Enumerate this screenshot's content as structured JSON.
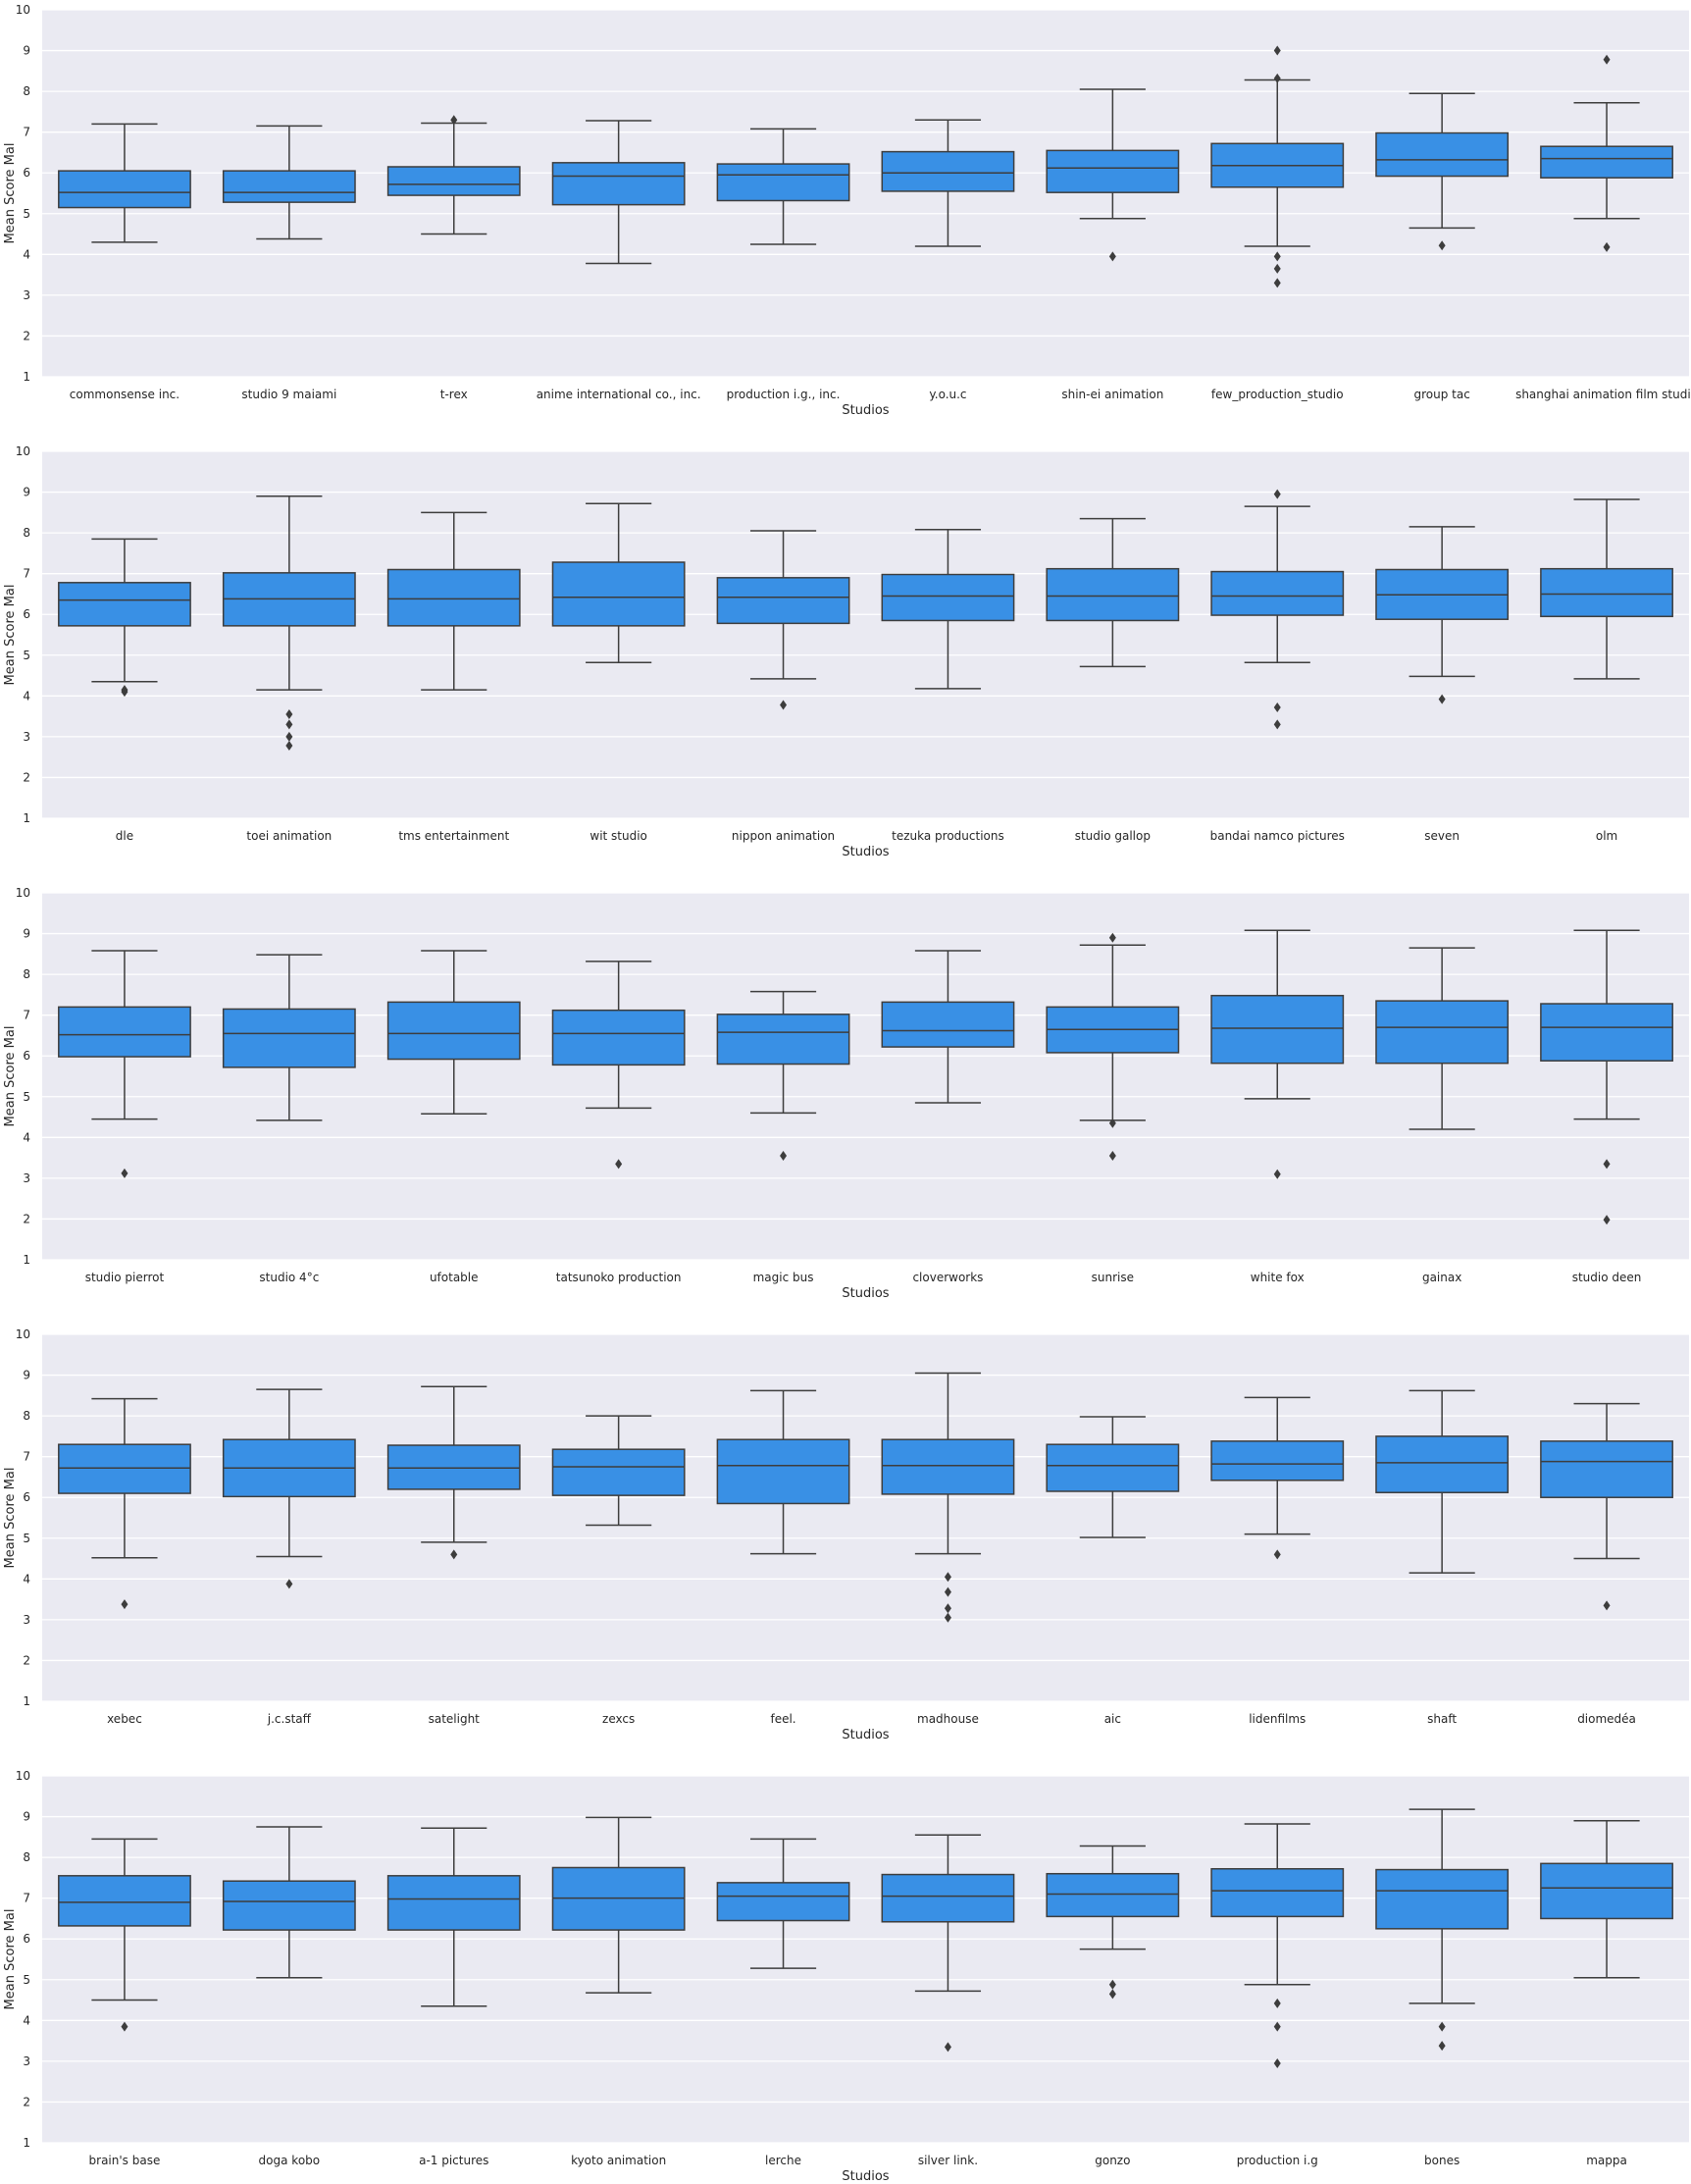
{
  "chart_data": [
    {
      "type": "boxplot",
      "xlabel": "Studios",
      "ylabel": "Mean Score Mal",
      "ylim": [
        1,
        10
      ],
      "yticks": [
        1,
        2,
        3,
        4,
        5,
        6,
        7,
        8,
        9,
        10
      ],
      "grid": true,
      "box_color": "#3990e5",
      "categories": [
        "commonsense inc.",
        "studio 9 maiami",
        "t-rex",
        "anime international co., inc.",
        "production i.g., inc.",
        "y.o.u.c",
        "shin-ei animation",
        "few_production_studio",
        "group tac",
        "shanghai animation film studio"
      ],
      "boxes": [
        {
          "whislo": 4.3,
          "q1": 5.15,
          "med": 5.52,
          "q3": 6.05,
          "whishi": 7.2,
          "fliers": []
        },
        {
          "whislo": 4.38,
          "q1": 5.28,
          "med": 5.52,
          "q3": 6.05,
          "whishi": 7.15,
          "fliers": []
        },
        {
          "whislo": 4.5,
          "q1": 5.45,
          "med": 5.72,
          "q3": 6.15,
          "whishi": 7.22,
          "fliers": [
            7.3
          ]
        },
        {
          "whislo": 3.78,
          "q1": 5.22,
          "med": 5.92,
          "q3": 6.25,
          "whishi": 7.28,
          "fliers": []
        },
        {
          "whislo": 4.25,
          "q1": 5.32,
          "med": 5.95,
          "q3": 6.22,
          "whishi": 7.08,
          "fliers": []
        },
        {
          "whislo": 4.2,
          "q1": 5.55,
          "med": 6.0,
          "q3": 6.52,
          "whishi": 7.3,
          "fliers": []
        },
        {
          "whislo": 4.88,
          "q1": 5.52,
          "med": 6.12,
          "q3": 6.55,
          "whishi": 8.05,
          "fliers": [
            3.95
          ]
        },
        {
          "whislo": 4.2,
          "q1": 5.65,
          "med": 6.18,
          "q3": 6.72,
          "whishi": 8.28,
          "fliers": [
            3.3,
            3.65,
            3.95,
            8.32,
            9.0
          ]
        },
        {
          "whislo": 4.65,
          "q1": 5.92,
          "med": 6.32,
          "q3": 6.98,
          "whishi": 7.95,
          "fliers": [
            4.22
          ]
        },
        {
          "whislo": 4.88,
          "q1": 5.88,
          "med": 6.35,
          "q3": 6.65,
          "whishi": 7.72,
          "fliers": [
            4.18,
            8.78
          ]
        }
      ]
    },
    {
      "type": "boxplot",
      "xlabel": "Studios",
      "ylabel": "Mean Score Mal",
      "ylim": [
        1,
        10
      ],
      "yticks": [
        1,
        2,
        3,
        4,
        5,
        6,
        7,
        8,
        9,
        10
      ],
      "grid": true,
      "box_color": "#3990e5",
      "categories": [
        "dle",
        "toei animation",
        "tms entertainment",
        "wit studio",
        "nippon animation",
        "tezuka productions",
        "studio gallop",
        "bandai namco pictures",
        "seven",
        "olm"
      ],
      "boxes": [
        {
          "whislo": 4.35,
          "q1": 5.72,
          "med": 6.35,
          "q3": 6.78,
          "whishi": 7.85,
          "fliers": [
            4.1,
            4.15
          ]
        },
        {
          "whislo": 4.15,
          "q1": 5.72,
          "med": 6.38,
          "q3": 7.02,
          "whishi": 8.9,
          "fliers": [
            2.78,
            3.0,
            3.3,
            3.55
          ]
        },
        {
          "whislo": 4.15,
          "q1": 5.72,
          "med": 6.38,
          "q3": 7.1,
          "whishi": 8.5,
          "fliers": []
        },
        {
          "whislo": 4.82,
          "q1": 5.72,
          "med": 6.42,
          "q3": 7.28,
          "whishi": 8.72,
          "fliers": []
        },
        {
          "whislo": 4.42,
          "q1": 5.78,
          "med": 6.42,
          "q3": 6.9,
          "whishi": 8.05,
          "fliers": [
            3.78
          ]
        },
        {
          "whislo": 4.18,
          "q1": 5.85,
          "med": 6.45,
          "q3": 6.98,
          "whishi": 8.08,
          "fliers": []
        },
        {
          "whislo": 4.72,
          "q1": 5.85,
          "med": 6.45,
          "q3": 7.12,
          "whishi": 8.35,
          "fliers": []
        },
        {
          "whislo": 4.82,
          "q1": 5.98,
          "med": 6.45,
          "q3": 7.05,
          "whishi": 8.65,
          "fliers": [
            3.3,
            3.72,
            8.95
          ]
        },
        {
          "whislo": 4.48,
          "q1": 5.88,
          "med": 6.48,
          "q3": 7.1,
          "whishi": 8.15,
          "fliers": [
            3.92
          ]
        },
        {
          "whislo": 4.42,
          "q1": 5.95,
          "med": 6.5,
          "q3": 7.12,
          "whishi": 8.82,
          "fliers": []
        }
      ]
    },
    {
      "type": "boxplot",
      "xlabel": "Studios",
      "ylabel": "Mean Score Mal",
      "ylim": [
        1,
        10
      ],
      "yticks": [
        1,
        2,
        3,
        4,
        5,
        6,
        7,
        8,
        9,
        10
      ],
      "grid": true,
      "box_color": "#3990e5",
      "categories": [
        "studio pierrot",
        "studio 4°c",
        "ufotable",
        "tatsunoko production",
        "magic bus",
        "cloverworks",
        "sunrise",
        "white fox",
        "gainax",
        "studio deen"
      ],
      "boxes": [
        {
          "whislo": 4.45,
          "q1": 5.98,
          "med": 6.52,
          "q3": 7.2,
          "whishi": 8.58,
          "fliers": [
            3.12
          ]
        },
        {
          "whislo": 4.42,
          "q1": 5.72,
          "med": 6.55,
          "q3": 7.15,
          "whishi": 8.48,
          "fliers": []
        },
        {
          "whislo": 4.58,
          "q1": 5.92,
          "med": 6.55,
          "q3": 7.32,
          "whishi": 8.58,
          "fliers": []
        },
        {
          "whislo": 4.72,
          "q1": 5.78,
          "med": 6.55,
          "q3": 7.12,
          "whishi": 8.32,
          "fliers": [
            3.35
          ]
        },
        {
          "whislo": 4.6,
          "q1": 5.8,
          "med": 6.58,
          "q3": 7.02,
          "whishi": 7.58,
          "fliers": [
            3.55
          ]
        },
        {
          "whislo": 4.85,
          "q1": 6.22,
          "med": 6.62,
          "q3": 7.32,
          "whishi": 8.58,
          "fliers": []
        },
        {
          "whislo": 4.42,
          "q1": 6.08,
          "med": 6.65,
          "q3": 7.2,
          "whishi": 8.72,
          "fliers": [
            3.55,
            4.35,
            8.9
          ]
        },
        {
          "whislo": 4.95,
          "q1": 5.82,
          "med": 6.68,
          "q3": 7.48,
          "whishi": 9.08,
          "fliers": [
            3.1
          ]
        },
        {
          "whislo": 4.2,
          "q1": 5.82,
          "med": 6.7,
          "q3": 7.35,
          "whishi": 8.65,
          "fliers": []
        },
        {
          "whislo": 4.45,
          "q1": 5.88,
          "med": 6.7,
          "q3": 7.28,
          "whishi": 9.08,
          "fliers": [
            1.98,
            3.35
          ]
        }
      ]
    },
    {
      "type": "boxplot",
      "xlabel": "Studios",
      "ylabel": "Mean Score Mal",
      "ylim": [
        1,
        10
      ],
      "yticks": [
        1,
        2,
        3,
        4,
        5,
        6,
        7,
        8,
        9,
        10
      ],
      "grid": true,
      "box_color": "#3990e5",
      "categories": [
        "xebec",
        "j.c.staff",
        "satelight",
        "zexcs",
        "feel.",
        "madhouse",
        "aic",
        "lidenfilms",
        "shaft",
        "diomedéa"
      ],
      "boxes": [
        {
          "whislo": 4.52,
          "q1": 6.1,
          "med": 6.72,
          "q3": 7.3,
          "whishi": 8.42,
          "fliers": [
            3.38
          ]
        },
        {
          "whislo": 4.55,
          "q1": 6.02,
          "med": 6.72,
          "q3": 7.42,
          "whishi": 8.65,
          "fliers": [
            3.88
          ]
        },
        {
          "whislo": 4.9,
          "q1": 6.2,
          "med": 6.72,
          "q3": 7.28,
          "whishi": 8.72,
          "fliers": [
            4.6
          ]
        },
        {
          "whislo": 5.32,
          "q1": 6.05,
          "med": 6.75,
          "q3": 7.18,
          "whishi": 8.0,
          "fliers": []
        },
        {
          "whislo": 4.62,
          "q1": 5.85,
          "med": 6.78,
          "q3": 7.42,
          "whishi": 8.62,
          "fliers": []
        },
        {
          "whislo": 4.62,
          "q1": 6.08,
          "med": 6.78,
          "q3": 7.42,
          "whishi": 9.05,
          "fliers": [
            3.05,
            3.28,
            3.68,
            4.05
          ]
        },
        {
          "whislo": 5.02,
          "q1": 6.15,
          "med": 6.78,
          "q3": 7.3,
          "whishi": 7.98,
          "fliers": []
        },
        {
          "whislo": 5.1,
          "q1": 6.42,
          "med": 6.82,
          "q3": 7.38,
          "whishi": 8.45,
          "fliers": [
            4.6
          ]
        },
        {
          "whislo": 4.15,
          "q1": 6.12,
          "med": 6.85,
          "q3": 7.5,
          "whishi": 8.62,
          "fliers": []
        },
        {
          "whislo": 4.5,
          "q1": 6.0,
          "med": 6.88,
          "q3": 7.38,
          "whishi": 8.3,
          "fliers": [
            3.35
          ]
        }
      ]
    },
    {
      "type": "boxplot",
      "xlabel": "Studios",
      "ylabel": "Mean Score Mal",
      "ylim": [
        1,
        10
      ],
      "yticks": [
        1,
        2,
        3,
        4,
        5,
        6,
        7,
        8,
        9,
        10
      ],
      "grid": true,
      "box_color": "#3990e5",
      "categories": [
        "brain's base",
        "doga kobo",
        "a-1 pictures",
        "kyoto animation",
        "lerche",
        "silver link.",
        "gonzo",
        "production i.g",
        "bones",
        "mappa"
      ],
      "boxes": [
        {
          "whislo": 4.5,
          "q1": 6.32,
          "med": 6.9,
          "q3": 7.55,
          "whishi": 8.45,
          "fliers": [
            3.85
          ]
        },
        {
          "whislo": 5.05,
          "q1": 6.22,
          "med": 6.92,
          "q3": 7.42,
          "whishi": 8.75,
          "fliers": []
        },
        {
          "whislo": 4.35,
          "q1": 6.22,
          "med": 6.98,
          "q3": 7.55,
          "whishi": 8.72,
          "fliers": []
        },
        {
          "whislo": 4.68,
          "q1": 6.22,
          "med": 7.0,
          "q3": 7.75,
          "whishi": 8.98,
          "fliers": []
        },
        {
          "whislo": 5.28,
          "q1": 6.45,
          "med": 7.05,
          "q3": 7.38,
          "whishi": 8.45,
          "fliers": []
        },
        {
          "whislo": 4.72,
          "q1": 6.42,
          "med": 7.05,
          "q3": 7.58,
          "whishi": 8.55,
          "fliers": [
            3.35
          ]
        },
        {
          "whislo": 5.75,
          "q1": 6.55,
          "med": 7.1,
          "q3": 7.6,
          "whishi": 8.28,
          "fliers": [
            4.65,
            4.88
          ]
        },
        {
          "whislo": 4.88,
          "q1": 6.55,
          "med": 7.18,
          "q3": 7.72,
          "whishi": 8.82,
          "fliers": [
            2.95,
            3.85,
            4.42
          ]
        },
        {
          "whislo": 4.42,
          "q1": 6.25,
          "med": 7.18,
          "q3": 7.7,
          "whishi": 9.18,
          "fliers": [
            3.38,
            3.85
          ]
        },
        {
          "whislo": 5.05,
          "q1": 6.5,
          "med": 7.25,
          "q3": 7.85,
          "whishi": 8.9,
          "fliers": []
        }
      ]
    }
  ]
}
